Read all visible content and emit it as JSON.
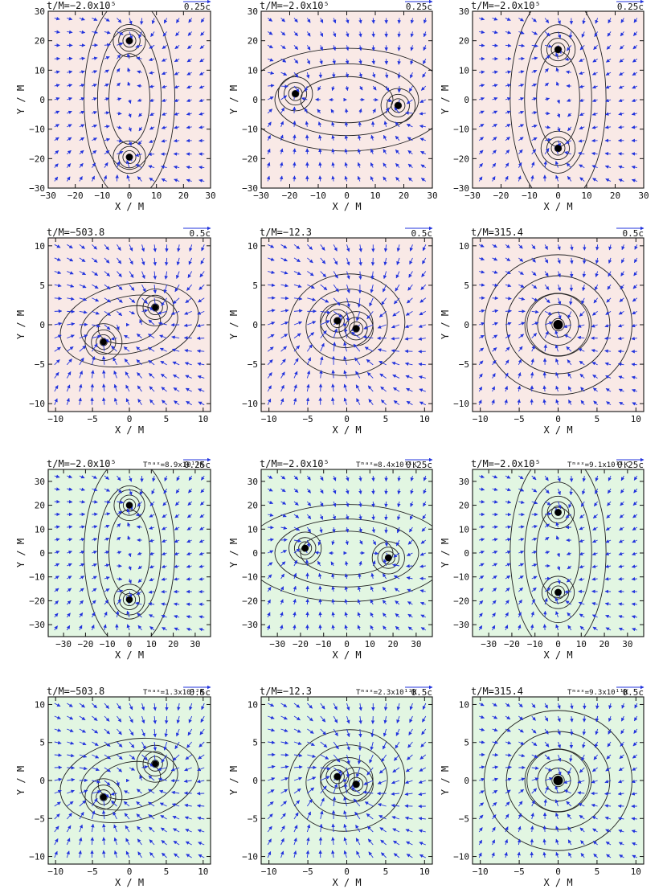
{
  "figure_title": "",
  "colors": {
    "red_fill": "#f0c4bd",
    "red_light": "#f9e9e6",
    "green_fill": "#9be09b",
    "green_light": "#e2f6e2",
    "arrow": "#2233dd",
    "contour": "#222222"
  },
  "chart_data": [
    {
      "type": "vector_field",
      "panel": "1-1",
      "time_label": "t/M=−2.0x10⁵",
      "tmax_label": "",
      "scale_label": "0.25c",
      "xlabel": "X / M",
      "ylabel": "Y / M",
      "xlim": [
        -30,
        30
      ],
      "ylim": [
        -30,
        30
      ],
      "xticks": [
        "−30",
        "−20",
        "−10",
        "0",
        "10",
        "20",
        "30"
      ],
      "yticks": [
        "−30",
        "−20",
        "−10",
        "0",
        "10",
        "20",
        "30"
      ],
      "colormap": "red",
      "black_holes": [
        [
          0,
          20
        ],
        [
          0,
          -19.5
        ]
      ],
      "bh_spread": 6,
      "envelope": "vertical"
    },
    {
      "type": "vector_field",
      "panel": "1-2",
      "time_label": "t/M=−2.0x10⁵",
      "tmax_label": "",
      "scale_label": "0.25c",
      "xlabel": "X / M",
      "ylabel": "Y / M",
      "xlim": [
        -30,
        30
      ],
      "ylim": [
        -30,
        30
      ],
      "xticks": [
        "−30",
        "−20",
        "−10",
        "0",
        "10",
        "20",
        "30"
      ],
      "yticks": [
        "−30",
        "−20",
        "−10",
        "0",
        "10",
        "20",
        "30"
      ],
      "colormap": "red",
      "black_holes": [
        [
          -18,
          2
        ],
        [
          18,
          -2
        ]
      ],
      "bh_spread": 6,
      "envelope": "horizontal"
    },
    {
      "type": "vector_field",
      "panel": "1-3",
      "time_label": "t/M=−2.0x10⁵",
      "tmax_label": "",
      "scale_label": "0.25c",
      "xlabel": "X / M",
      "ylabel": "Y / M",
      "xlim": [
        -30,
        30
      ],
      "ylim": [
        -30,
        30
      ],
      "xticks": [
        "−30",
        "−20",
        "−10",
        "0",
        "10",
        "20",
        "30"
      ],
      "yticks": [
        "−30",
        "−20",
        "−10",
        "0",
        "10",
        "20",
        "30"
      ],
      "colormap": "red",
      "black_holes": [
        [
          0,
          17
        ],
        [
          0,
          -16.5
        ]
      ],
      "bh_spread": 6,
      "envelope": "vertical"
    },
    {
      "type": "vector_field",
      "panel": "2-1",
      "time_label": "t/M=−503.8",
      "tmax_label": "",
      "scale_label": "0.5c",
      "xlabel": "X / M",
      "ylabel": "Y / M",
      "xlim": [
        -11,
        11
      ],
      "ylim": [
        -11,
        11
      ],
      "xticks": [
        "−10",
        "−5",
        "0",
        "5",
        "10"
      ],
      "yticks": [
        "−10",
        "−5",
        "0",
        "5",
        "10"
      ],
      "colormap": "red",
      "black_holes": [
        [
          3.5,
          2.2
        ],
        [
          -3.5,
          -2.2
        ]
      ],
      "bh_spread": 2.5,
      "envelope": "inspiral"
    },
    {
      "type": "vector_field",
      "panel": "2-2",
      "time_label": "t/M=−12.3",
      "tmax_label": "",
      "scale_label": "0.5c",
      "xlabel": "X / M",
      "ylabel": "Y / M",
      "xlim": [
        -11,
        11
      ],
      "ylim": [
        -11,
        11
      ],
      "xticks": [
        "−10",
        "−5",
        "0",
        "5",
        "10"
      ],
      "yticks": [
        "−10",
        "−5",
        "0",
        "5",
        "10"
      ],
      "colormap": "red",
      "black_holes": [
        [
          -1.2,
          0.5
        ],
        [
          1.2,
          -0.5
        ]
      ],
      "bh_spread": 2.2,
      "envelope": "merger"
    },
    {
      "type": "vector_field",
      "panel": "2-3",
      "time_label": "t/M=315.4",
      "tmax_label": "",
      "scale_label": "0.5c",
      "xlabel": "X / M",
      "ylabel": "Y / M",
      "xlim": [
        -11,
        11
      ],
      "ylim": [
        -11,
        11
      ],
      "xticks": [
        "−10",
        "−5",
        "0",
        "5",
        "10"
      ],
      "yticks": [
        "−10",
        "−5",
        "0",
        "5",
        "10"
      ],
      "colormap": "red",
      "black_holes": [
        [
          0,
          0
        ]
      ],
      "bh_spread": 4,
      "envelope": "remnant"
    },
    {
      "type": "vector_field",
      "panel": "3-1",
      "time_label": "t/M=−2.0x10⁵",
      "tmax_label": "Tᵐᵃˣ=8.9x10¹¹K",
      "scale_label": "0.25c",
      "xlabel": "X / M",
      "ylabel": "Y / M",
      "xlim": [
        -37,
        37
      ],
      "ylim": [
        -35,
        35
      ],
      "xticks": [
        "−30",
        "−20",
        "−10",
        "0",
        "10",
        "20",
        "30"
      ],
      "yticks": [
        "−30",
        "−20",
        "−10",
        "0",
        "10",
        "20",
        "30"
      ],
      "colormap": "green",
      "black_holes": [
        [
          0,
          20
        ],
        [
          0,
          -19.5
        ]
      ],
      "bh_spread": 7,
      "envelope": "vertical"
    },
    {
      "type": "vector_field",
      "panel": "3-2",
      "time_label": "t/M=−2.0x10⁵",
      "tmax_label": "Tᵐᵃˣ=8.4x10¹¹K",
      "scale_label": "0.25c",
      "xlabel": "X / M",
      "ylabel": "Y / M",
      "xlim": [
        -37,
        37
      ],
      "ylim": [
        -35,
        35
      ],
      "xticks": [
        "−30",
        "−20",
        "−10",
        "0",
        "10",
        "20",
        "30"
      ],
      "yticks": [
        "−30",
        "−20",
        "−10",
        "0",
        "10",
        "20",
        "30"
      ],
      "colormap": "green",
      "black_holes": [
        [
          -18,
          2
        ],
        [
          18,
          -2
        ]
      ],
      "bh_spread": 7,
      "envelope": "horizontal"
    },
    {
      "type": "vector_field",
      "panel": "3-3",
      "time_label": "t/M=−2.0x10⁵",
      "tmax_label": "Tᵐᵃˣ=9.1x10¹¹K",
      "scale_label": "0.25c",
      "xlabel": "X / M",
      "ylabel": "Y / M",
      "xlim": [
        -37,
        37
      ],
      "ylim": [
        -35,
        35
      ],
      "xticks": [
        "−30",
        "−20",
        "−10",
        "0",
        "10",
        "20",
        "30"
      ],
      "yticks": [
        "−30",
        "−20",
        "−10",
        "0",
        "10",
        "20",
        "30"
      ],
      "colormap": "green",
      "black_holes": [
        [
          0,
          17
        ],
        [
          0,
          -16.5
        ]
      ],
      "bh_spread": 7,
      "envelope": "vertical"
    },
    {
      "type": "vector_field",
      "panel": "4-1",
      "time_label": "t/M=−503.8",
      "tmax_label": "Tᵐᵃˣ=1.3x10¹²K",
      "scale_label": "0.5c",
      "xlabel": "X / M",
      "ylabel": "Y / M",
      "xlim": [
        -11,
        11
      ],
      "ylim": [
        -11,
        11
      ],
      "xticks": [
        "−10",
        "−5",
        "0",
        "5",
        "10"
      ],
      "yticks": [
        "−10",
        "−5",
        "0",
        "5",
        "10"
      ],
      "colormap": "green",
      "black_holes": [
        [
          3.5,
          2.2
        ],
        [
          -3.5,
          -2.2
        ]
      ],
      "bh_spread": 2.5,
      "envelope": "inspiral"
    },
    {
      "type": "vector_field",
      "panel": "4-2",
      "time_label": "t/M=−12.3",
      "tmax_label": "Tᵐᵃˣ=2.3x10¹²K",
      "scale_label": "0.5c",
      "xlabel": "X / M",
      "ylabel": "Y / M",
      "xlim": [
        -11,
        11
      ],
      "ylim": [
        -11,
        11
      ],
      "xticks": [
        "−10",
        "−5",
        "0",
        "5",
        "10"
      ],
      "yticks": [
        "−10",
        "−5",
        "0",
        "5",
        "10"
      ],
      "colormap": "green",
      "black_holes": [
        [
          -1.2,
          0.5
        ],
        [
          1.2,
          -0.5
        ]
      ],
      "bh_spread": 2.2,
      "envelope": "merger"
    },
    {
      "type": "vector_field",
      "panel": "4-3",
      "time_label": "t/M=315.4",
      "tmax_label": "Tᵐᵃˣ=9.3x10¹¹K",
      "scale_label": "0.5c",
      "xlabel": "X / M",
      "ylabel": "Y / M",
      "xlim": [
        -11,
        11
      ],
      "ylim": [
        -11,
        11
      ],
      "xticks": [
        "−10",
        "−5",
        "0",
        "5",
        "10"
      ],
      "yticks": [
        "−10",
        "−5",
        "0",
        "5",
        "10"
      ],
      "colormap": "green",
      "black_holes": [
        [
          0,
          0
        ]
      ],
      "bh_spread": 4,
      "envelope": "remnant"
    }
  ]
}
